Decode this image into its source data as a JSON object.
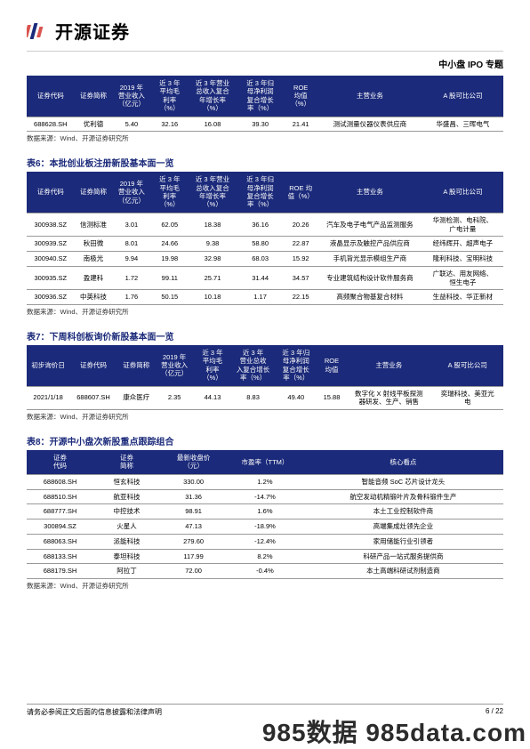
{
  "header": {
    "brand": "开源证券",
    "doc_subject": "中小盘 IPO 专题"
  },
  "table5": {
    "cols": [
      "证券代码",
      "证券简称",
      "2019 年\n营业收入\n（亿元）",
      "近 3 年\n平均毛\n利率\n（%）",
      "近 3 年营业\n总收入复合\n年增长率\n（%）",
      "近 3 年归\n母净利润\n复合增长\n率（%）",
      "ROE\n均值\n（%）",
      "主营业务",
      "A 股可比公司"
    ],
    "rows": [
      [
        "688628.SH",
        "优利德",
        "5.40",
        "32.16",
        "16.08",
        "39.30",
        "21.41",
        "测试测量仪器仪表供应商",
        "华盛昌、三晖电气"
      ]
    ],
    "source": "数据来源：Wind、开源证券研究所"
  },
  "table6": {
    "caption": "表6：本批创业板注册新股基本面一览",
    "cols": [
      "证券代码",
      "证券简称",
      "2019 年\n营业收入\n（亿元）",
      "近 3 年\n平均毛\n利率\n（%）",
      "近 3 年营业\n总收入复合\n年增长率\n（%）",
      "近 3 年归\n母净利润\n复合增长\n率（%）",
      "ROE 均\n值（%）",
      "主营业务",
      "A 股可比公司"
    ],
    "rows": [
      [
        "300938.SZ",
        "信测标准",
        "3.01",
        "62.05",
        "18.38",
        "36.16",
        "20.26",
        "汽车及电子电气产品监测服务",
        "华测检测、电科院、\n广电计量"
      ],
      [
        "300939.SZ",
        "秋田微",
        "8.01",
        "24.66",
        "9.38",
        "58.80",
        "22.87",
        "液晶显示及触控产品供应商",
        "经纬辉开、超声电子"
      ],
      [
        "300940.SZ",
        "南极光",
        "9.94",
        "19.98",
        "32.98",
        "68.03",
        "15.92",
        "手机背光显示模组生产商",
        "隆利科技、宝明科技"
      ],
      [
        "300935.SZ",
        "盈建科",
        "1.72",
        "99.11",
        "25.71",
        "31.44",
        "34.57",
        "专业建筑结构设计软件服务商",
        "广联达、用友网络、\n恒生电子"
      ],
      [
        "300936.SZ",
        "中英科技",
        "1.76",
        "50.15",
        "10.18",
        "1.17",
        "22.15",
        "高频聚合物基复合材料",
        "生益科技、华正新材"
      ]
    ],
    "source": "数据来源：Wind、开源证券研究所"
  },
  "table7": {
    "caption": "表7：下周科创板询价新股基本面一览",
    "cols": [
      "初步询价日",
      "证券代码",
      "证券简称",
      "2019 年\n营业收入\n（亿元）",
      "近 3 年\n平均毛\n利率\n（%）",
      "近 3 年\n营业总收\n入复合增长\n率（%）",
      "近 3 年归\n母净利润\n复合增长\n率（%）",
      "ROE\n均值",
      "主营业务",
      "A 股可比公司"
    ],
    "rows": [
      [
        "2021/1/18",
        "688607.SH",
        "康众医疗",
        "2.35",
        "44.13",
        "8.83",
        "49.40",
        "15.88",
        "数字化 X 射线平板探测\n器研发、生产、销售",
        "奕瑞科技、美亚光\n电"
      ]
    ],
    "source": "数据来源：Wind、开源证券研究所"
  },
  "table8": {
    "caption": "表8：开源中小盘次新股重点跟踪组合",
    "cols": [
      "证券\n代码",
      "证券\n简称",
      "最新收盘价\n（元）",
      "市盈率（TTM）",
      "核心看点"
    ],
    "rows": [
      [
        "688608.SH",
        "恒玄科技",
        "330.00",
        "1.2%",
        "智能音频 SoC 芯片设计龙头"
      ],
      [
        "688510.SH",
        "航亚科技",
        "31.36",
        "-14.7%",
        "航空发动机精锻叶片及骨科锻件生产"
      ],
      [
        "688777.SH",
        "中控技术",
        "98.91",
        "1.6%",
        "本土工业控制软件商"
      ],
      [
        "300894.SZ",
        "火星人",
        "47.13",
        "-18.9%",
        "高端集成灶领先企业"
      ],
      [
        "688063.SH",
        "派能科技",
        "279.60",
        "-12.4%",
        "家用储能行业引领者"
      ],
      [
        "688133.SH",
        "泰坦科技",
        "117.99",
        "8.2%",
        "科研产品一站式服务提供商"
      ],
      [
        "688179.SH",
        "阿拉丁",
        "72.00",
        "-0.4%",
        "本土高端科研试剂制造商"
      ]
    ],
    "source": "数据来源：Wind、开源证券研究所"
  },
  "footer": {
    "disclaimer": "请务必参阅正文后面的信息披露和法律声明",
    "page": "6 / 22"
  },
  "watermark": "985数据 985data.com"
}
